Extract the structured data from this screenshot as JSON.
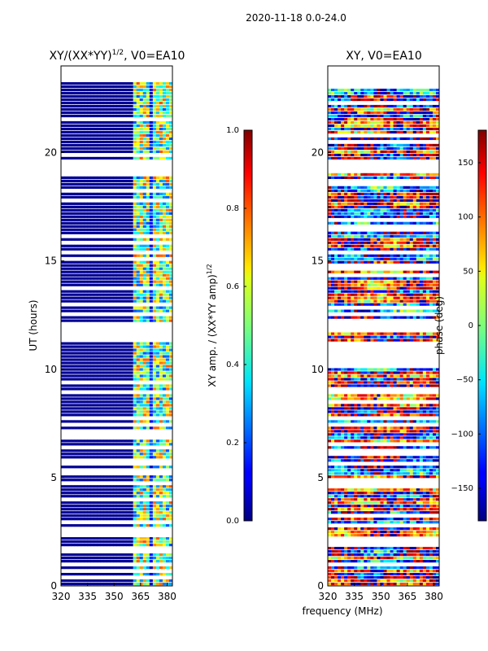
{
  "figure": {
    "suptitle": "2020-11-18 0.0-24.0",
    "xlabel": "frequency (MHz)"
  },
  "chart_data": [
    {
      "type": "heatmap",
      "title_main": "XY/(XX*YY)",
      "title_exp": "1/2",
      "title_suffix": ", V0=EA10",
      "ylabel": "UT (hours)",
      "xlim": [
        320,
        383
      ],
      "ylim": [
        0,
        24
      ],
      "xticks": [
        "320",
        "335",
        "350",
        "365",
        "380"
      ],
      "xtick_values": [
        320,
        335,
        350,
        365,
        380
      ],
      "yticks": [
        "0",
        "5",
        "10",
        "15",
        "20"
      ],
      "ytick_values": [
        0,
        5,
        10,
        15,
        20
      ],
      "flagged_hours": [
        [
          11.2,
          12.1
        ],
        [
          19.0,
          19.5
        ],
        [
          23.2,
          24.0
        ],
        [
          2.3,
          2.6
        ]
      ],
      "colorbar": {
        "label_main": "XY amp. / (XX*YY amp)",
        "label_exp": "1/2",
        "min": 0.0,
        "max": 1.0,
        "ticks": [
          "0.0",
          "0.2",
          "0.4",
          "0.6",
          "0.8",
          "1.0"
        ],
        "tick_values": [
          0.0,
          0.2,
          0.4,
          0.6,
          0.8,
          1.0
        ]
      }
    },
    {
      "type": "heatmap",
      "title_main": "XY, V0=EA10",
      "ylabel": "",
      "xlim": [
        320,
        383
      ],
      "ylim": [
        0,
        24
      ],
      "xticks": [
        "320",
        "335",
        "350",
        "365",
        "380"
      ],
      "xtick_values": [
        320,
        335,
        350,
        365,
        380
      ],
      "yticks": [
        "0",
        "5",
        "10",
        "15",
        "20"
      ],
      "ytick_values": [
        0,
        5,
        10,
        15,
        20
      ],
      "flagged_hours": [
        [
          10.1,
          11.2
        ],
        [
          11.8,
          12.1
        ],
        [
          1.8,
          2.2
        ],
        [
          19.0,
          19.5
        ],
        [
          23.3,
          24.0
        ]
      ],
      "colorbar": {
        "label_main": "phase (deg)",
        "min": -180,
        "max": 180,
        "ticks": [
          "−150",
          "−100",
          "−50",
          "0",
          "50",
          "100",
          "150"
        ],
        "tick_values": [
          -150,
          -100,
          -50,
          0,
          50,
          100,
          150
        ]
      }
    }
  ]
}
